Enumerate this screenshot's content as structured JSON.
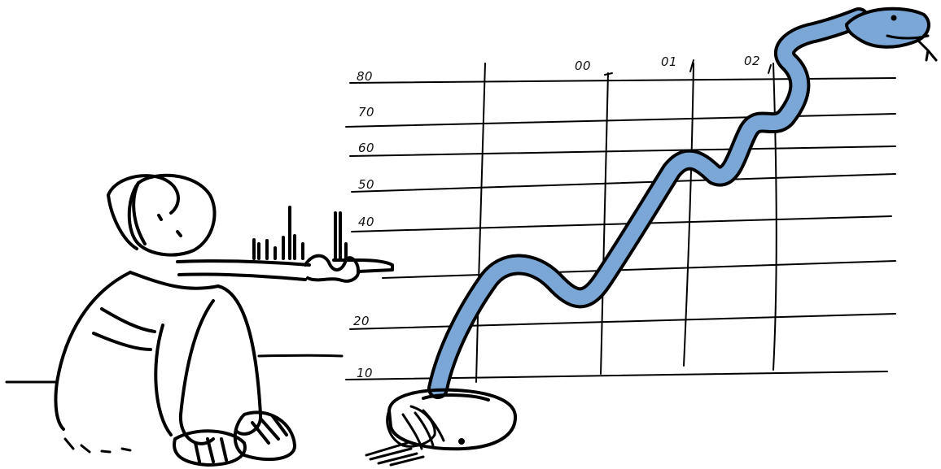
{
  "colors": {
    "snake_fill": "#7aa7d6",
    "ink": "#000000",
    "background": "#ffffff"
  },
  "y_axis_labels": [
    "80",
    "70",
    "60",
    "50",
    "40",
    "20",
    "10"
  ],
  "x_axis_labels": [
    "00",
    "01",
    "02"
  ]
}
